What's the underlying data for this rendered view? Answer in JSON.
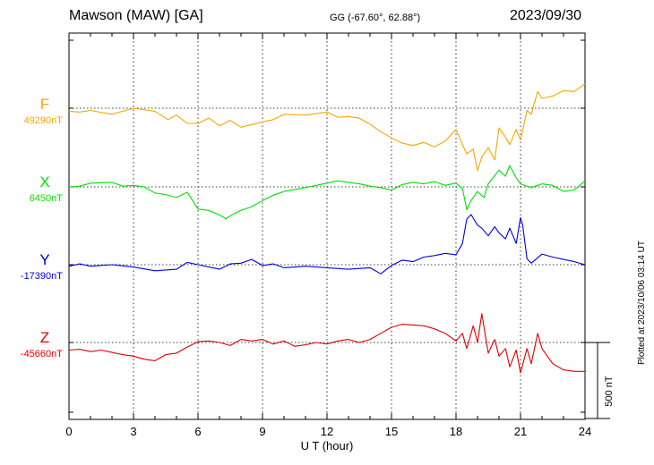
{
  "header": {
    "station": "Mawson (MAW)  [GA]",
    "coords": "GG (-67.60°,  62.88°)",
    "date": "2023/09/30"
  },
  "footer": {
    "plotted": "Plotted at 2023/10/06 03:14 UT"
  },
  "colors": {
    "F": "#f0a800",
    "X": "#00e000",
    "Y": "#0000e0",
    "Z": "#e00000"
  },
  "chart_data": {
    "type": "line",
    "title": "Mawson (MAW)  [GA]",
    "xlabel": "U T (hour)",
    "xlim": [
      0,
      24
    ],
    "xticks": [
      "0",
      "3",
      "6",
      "9",
      "12",
      "15",
      "18",
      "21",
      "24"
    ],
    "scale_bar": "500 nT",
    "scale_bar_value_nT": 500,
    "grid": true,
    "series": [
      {
        "name": "F",
        "baseline_label": "49290nT",
        "baseline": 49290,
        "x": [
          0,
          0.5,
          1,
          2,
          3,
          4,
          4.6,
          5,
          5.5,
          6,
          6.5,
          7,
          7.5,
          8,
          9,
          9.5,
          10,
          11,
          12,
          12.5,
          13,
          13.5,
          14,
          14.5,
          15,
          15.5,
          16,
          16.5,
          17,
          17.5,
          18,
          18.3,
          18.5,
          18.8,
          19,
          19.2,
          19.5,
          19.8,
          20,
          20.3,
          20.5,
          20.8,
          21,
          21.3,
          21.5,
          21.8,
          22,
          22.5,
          23,
          23.5,
          24
        ],
        "y": [
          49270,
          49265,
          49275,
          49250,
          49290,
          49270,
          49215,
          49245,
          49190,
          49190,
          49225,
          49175,
          49210,
          49165,
          49200,
          49215,
          49250,
          49245,
          49265,
          49230,
          49235,
          49225,
          49185,
          49135,
          49095,
          49060,
          49045,
          49065,
          49035,
          49075,
          49150,
          49050,
          48990,
          49020,
          48880,
          48970,
          49030,
          48950,
          49160,
          49100,
          49050,
          49150,
          49080,
          49275,
          49250,
          49400,
          49355,
          49370,
          49405,
          49400,
          49450
        ]
      },
      {
        "name": "X",
        "baseline_label": "6450nT",
        "baseline": 6450,
        "x": [
          0,
          0.5,
          1,
          2,
          2.5,
          3,
          3.5,
          4,
          4.5,
          5,
          5.5,
          6,
          6.5,
          7,
          7.3,
          7.5,
          8,
          8.5,
          9,
          9.5,
          10,
          11,
          12,
          12.5,
          13,
          13.5,
          14,
          14.5,
          15,
          15.5,
          16,
          16.5,
          17,
          17.5,
          18,
          18.3,
          18.5,
          18.7,
          19,
          19.3,
          19.5,
          20,
          20.3,
          20.5,
          20.8,
          21,
          21.5,
          22,
          22.5,
          23,
          23.5,
          24
        ],
        "y": [
          6450,
          6455,
          6475,
          6480,
          6455,
          6460,
          6450,
          6410,
          6400,
          6380,
          6415,
          6305,
          6295,
          6265,
          6240,
          6260,
          6295,
          6320,
          6360,
          6395,
          6420,
          6445,
          6475,
          6490,
          6480,
          6470,
          6455,
          6445,
          6430,
          6465,
          6480,
          6470,
          6485,
          6460,
          6475,
          6440,
          6300,
          6360,
          6420,
          6380,
          6470,
          6560,
          6520,
          6590,
          6510,
          6470,
          6445,
          6470,
          6460,
          6420,
          6430,
          6490
        ]
      },
      {
        "name": "Y",
        "baseline_label": "-17390nT",
        "baseline": -17390,
        "x": [
          0,
          0.5,
          1,
          2,
          3,
          4,
          5,
          5.5,
          6,
          7,
          7.5,
          8,
          8.5,
          9,
          9.5,
          10,
          11,
          12,
          13,
          14,
          14.5,
          15,
          15.5,
          16,
          16.5,
          17,
          17.5,
          18,
          18.3,
          18.5,
          18.7,
          19,
          19.2,
          19.5,
          19.8,
          20,
          20.3,
          20.5,
          20.8,
          21,
          21.1,
          21.3,
          21.5,
          22,
          22.5,
          23,
          23.5,
          24
        ],
        "y": [
          -17400,
          -17385,
          -17400,
          -17390,
          -17405,
          -17430,
          -17420,
          -17375,
          -17390,
          -17420,
          -17385,
          -17380,
          -17355,
          -17395,
          -17385,
          -17410,
          -17400,
          -17410,
          -17420,
          -17410,
          -17450,
          -17395,
          -17360,
          -17370,
          -17340,
          -17330,
          -17315,
          -17325,
          -17250,
          -17090,
          -17060,
          -17130,
          -17150,
          -17200,
          -17140,
          -17180,
          -17220,
          -17150,
          -17250,
          -17080,
          -17130,
          -17350,
          -17380,
          -17320,
          -17340,
          -17355,
          -17370,
          -17390
        ]
      },
      {
        "name": "Z",
        "baseline_label": "-45660nT",
        "baseline": -45660,
        "x": [
          0,
          0.5,
          1,
          1.5,
          2,
          2.5,
          3,
          3.5,
          4,
          4.5,
          5,
          5.5,
          6,
          6.5,
          7,
          7.5,
          8,
          8.5,
          9,
          9.5,
          10,
          10.5,
          11,
          11.5,
          12,
          12.5,
          13,
          13.5,
          14,
          14.5,
          15,
          15.5,
          16,
          16.5,
          17,
          17.5,
          18,
          18.3,
          18.5,
          18.8,
          19,
          19.2,
          19.5,
          19.8,
          20,
          20.3,
          20.5,
          20.8,
          21,
          21.3,
          21.5,
          21.8,
          22,
          22.5,
          23,
          23.5,
          24
        ],
        "y": [
          -45710,
          -45705,
          -45720,
          -45710,
          -45725,
          -45740,
          -45750,
          -45770,
          -45780,
          -45740,
          -45730,
          -45690,
          -45655,
          -45650,
          -45660,
          -45680,
          -45640,
          -45650,
          -45640,
          -45670,
          -45650,
          -45685,
          -45675,
          -45660,
          -45670,
          -45650,
          -45640,
          -45660,
          -45640,
          -45600,
          -45560,
          -45540,
          -45545,
          -45550,
          -45570,
          -45600,
          -45650,
          -45600,
          -45700,
          -45550,
          -45660,
          -45470,
          -45730,
          -45640,
          -45750,
          -45700,
          -45820,
          -45710,
          -45860,
          -45700,
          -45800,
          -45600,
          -45700,
          -45800,
          -45840,
          -45850,
          -45850
        ]
      }
    ]
  }
}
